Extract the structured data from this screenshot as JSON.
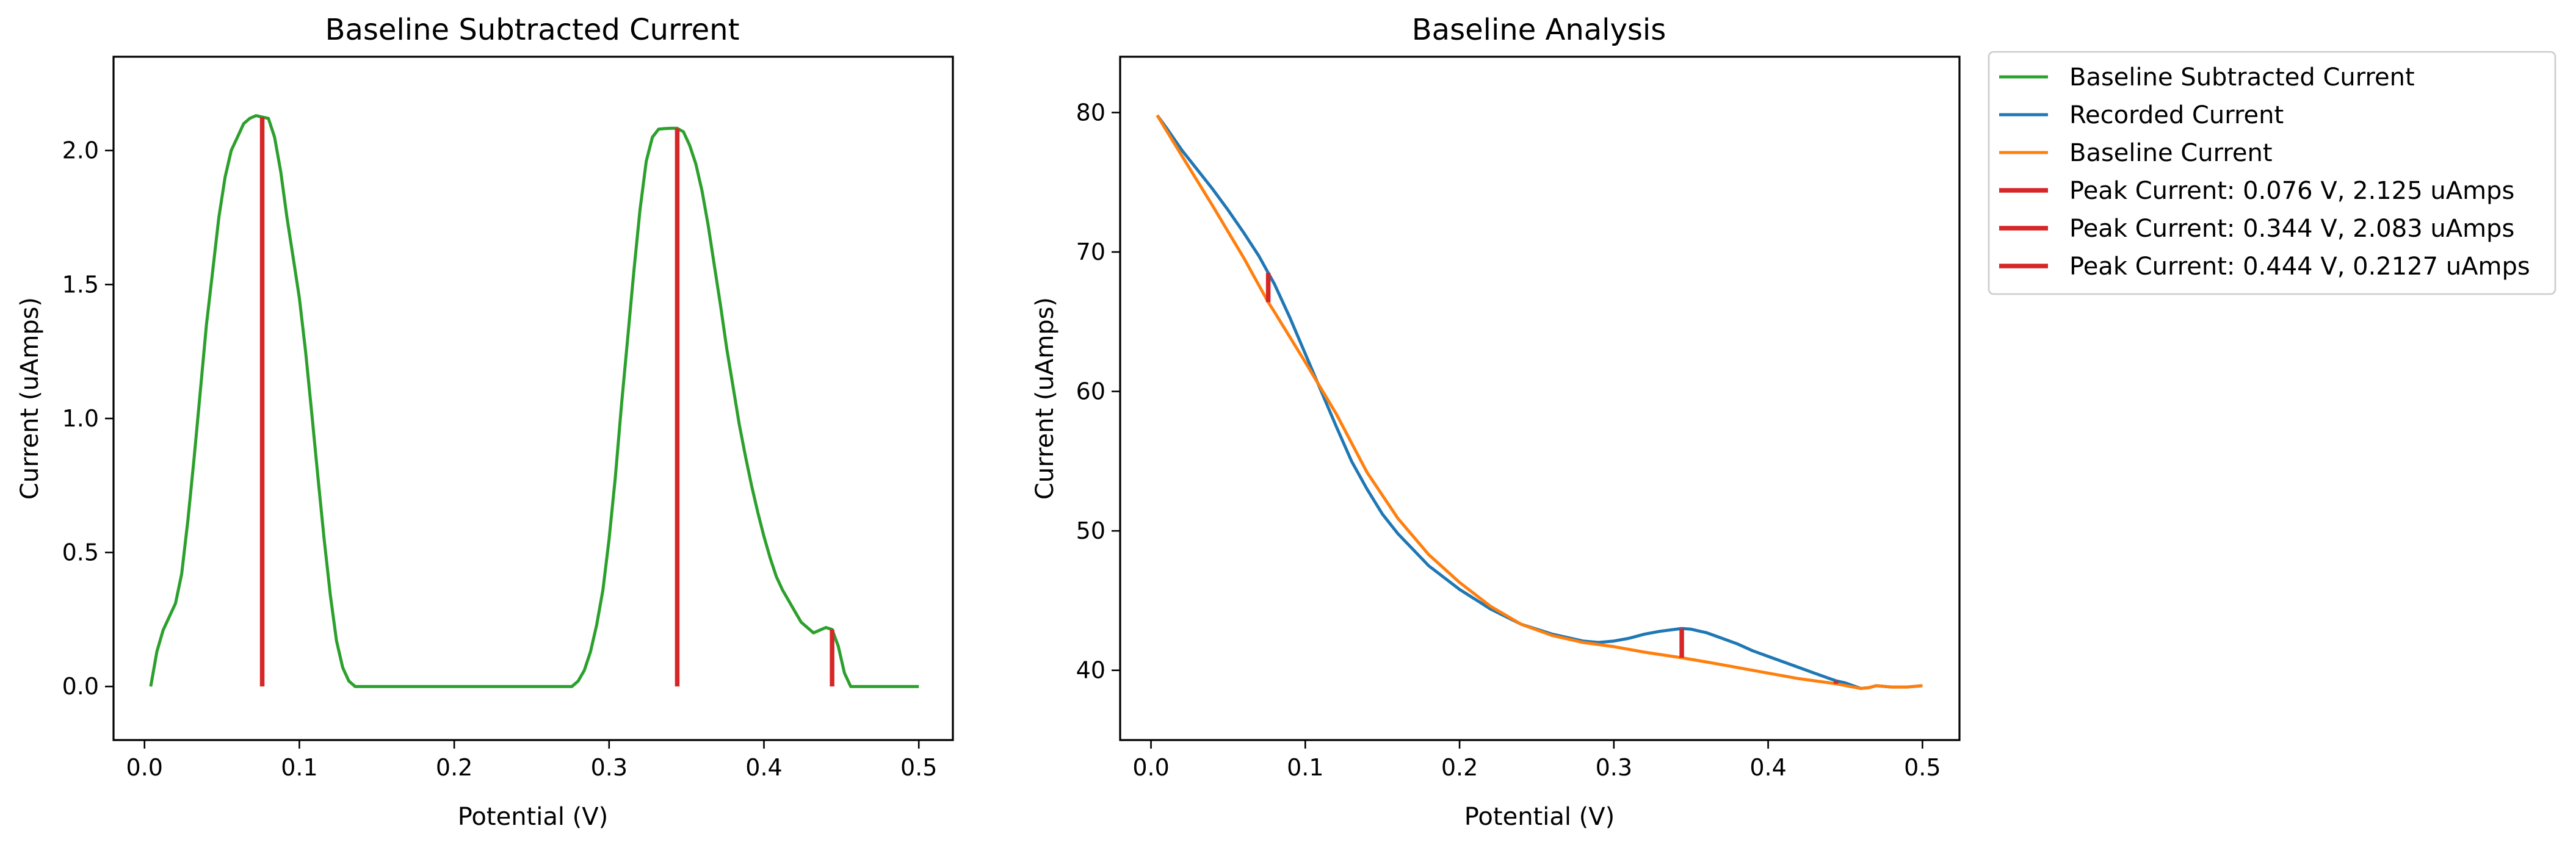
{
  "chart_data": [
    {
      "type": "line",
      "title": "Baseline Subtracted Current",
      "xlabel": "Potential (V)",
      "ylabel": "Current (uAmps)",
      "xlim": [
        -0.02,
        0.522
      ],
      "ylim": [
        -0.2,
        2.35
      ],
      "xticks": [
        0.0,
        0.1,
        0.2,
        0.3,
        0.4,
        0.5
      ],
      "yticks": [
        0.0,
        0.5,
        1.0,
        1.5,
        2.0
      ],
      "xtick_labels": [
        "0.0",
        "0.1",
        "0.2",
        "0.3",
        "0.4",
        "0.5"
      ],
      "ytick_labels": [
        "0.0",
        "0.5",
        "1.0",
        "1.5",
        "2.0"
      ],
      "series": [
        {
          "name": "Baseline Subtracted Current",
          "color": "#2ca02c",
          "x": [
            0.004,
            0.008,
            0.012,
            0.016,
            0.02,
            0.024,
            0.028,
            0.032,
            0.036,
            0.04,
            0.044,
            0.048,
            0.052,
            0.056,
            0.06,
            0.064,
            0.068,
            0.072,
            0.076,
            0.08,
            0.084,
            0.088,
            0.092,
            0.096,
            0.1,
            0.104,
            0.108,
            0.112,
            0.116,
            0.12,
            0.124,
            0.128,
            0.132,
            0.136,
            0.14,
            0.144,
            0.148,
            0.2,
            0.25,
            0.276,
            0.28,
            0.284,
            0.288,
            0.292,
            0.296,
            0.3,
            0.304,
            0.308,
            0.312,
            0.316,
            0.32,
            0.324,
            0.328,
            0.332,
            0.336,
            0.34,
            0.344,
            0.348,
            0.352,
            0.356,
            0.36,
            0.364,
            0.368,
            0.372,
            0.376,
            0.38,
            0.384,
            0.388,
            0.392,
            0.396,
            0.4,
            0.404,
            0.408,
            0.412,
            0.416,
            0.42,
            0.424,
            0.428,
            0.432,
            0.436,
            0.44,
            0.444,
            0.448,
            0.452,
            0.456,
            0.46,
            0.5
          ],
          "y": [
            0.0,
            0.13,
            0.21,
            0.26,
            0.31,
            0.42,
            0.62,
            0.85,
            1.1,
            1.35,
            1.55,
            1.75,
            1.9,
            2.0,
            2.05,
            2.1,
            2.12,
            2.13,
            2.125,
            2.12,
            2.05,
            1.92,
            1.75,
            1.6,
            1.45,
            1.25,
            1.02,
            0.78,
            0.55,
            0.34,
            0.17,
            0.07,
            0.02,
            0.0,
            0.0,
            0.0,
            0.0,
            0.0,
            0.0,
            0.0,
            0.02,
            0.06,
            0.13,
            0.23,
            0.36,
            0.55,
            0.78,
            1.05,
            1.3,
            1.55,
            1.78,
            1.96,
            2.05,
            2.08,
            2.082,
            2.083,
            2.083,
            2.07,
            2.02,
            1.95,
            1.85,
            1.72,
            1.57,
            1.42,
            1.26,
            1.12,
            0.98,
            0.86,
            0.75,
            0.65,
            0.56,
            0.48,
            0.41,
            0.36,
            0.32,
            0.28,
            0.24,
            0.22,
            0.2,
            0.21,
            0.22,
            0.2127,
            0.15,
            0.05,
            0.0,
            0.0,
            0.0
          ]
        }
      ],
      "peak_lines": [
        {
          "x": 0.076,
          "y0": 0.0,
          "y1": 2.125,
          "color": "#d62728"
        },
        {
          "x": 0.344,
          "y0": 0.0,
          "y1": 2.083,
          "color": "#d62728"
        },
        {
          "x": 0.444,
          "y0": 0.0,
          "y1": 0.2127,
          "color": "#d62728"
        }
      ]
    },
    {
      "type": "line",
      "title": "Baseline Analysis",
      "xlabel": "Potential (V)",
      "ylabel": "Current (uAmps)",
      "xlim": [
        -0.02,
        0.524
      ],
      "ylim": [
        35,
        84
      ],
      "xticks": [
        0.0,
        0.1,
        0.2,
        0.3,
        0.4,
        0.5
      ],
      "yticks": [
        40,
        50,
        60,
        70,
        80
      ],
      "xtick_labels": [
        "0.0",
        "0.1",
        "0.2",
        "0.3",
        "0.4",
        "0.5"
      ],
      "ytick_labels": [
        "40",
        "50",
        "60",
        "70",
        "80"
      ],
      "series": [
        {
          "name": "Recorded Current",
          "color": "#1f77b4",
          "x": [
            0.004,
            0.01,
            0.02,
            0.03,
            0.04,
            0.05,
            0.06,
            0.07,
            0.076,
            0.08,
            0.09,
            0.1,
            0.11,
            0.12,
            0.13,
            0.14,
            0.15,
            0.16,
            0.18,
            0.2,
            0.22,
            0.24,
            0.26,
            0.28,
            0.29,
            0.3,
            0.31,
            0.32,
            0.33,
            0.344,
            0.35,
            0.36,
            0.37,
            0.38,
            0.39,
            0.4,
            0.41,
            0.42,
            0.43,
            0.44,
            0.444,
            0.45,
            0.455,
            0.46,
            0.465,
            0.47,
            0.48,
            0.49,
            0.5
          ],
          "y": [
            79.8,
            78.9,
            77.3,
            75.9,
            74.5,
            73.0,
            71.4,
            69.7,
            68.5,
            67.7,
            65.3,
            62.7,
            60.1,
            57.5,
            55.0,
            53.0,
            51.2,
            49.8,
            47.5,
            45.8,
            44.4,
            43.3,
            42.6,
            42.1,
            42.0,
            42.1,
            42.3,
            42.6,
            42.8,
            43.0,
            42.95,
            42.7,
            42.3,
            41.9,
            41.4,
            41.0,
            40.6,
            40.2,
            39.8,
            39.4,
            39.25,
            39.1,
            38.9,
            38.7,
            38.75,
            38.9,
            38.8,
            38.8,
            38.9
          ]
        },
        {
          "name": "Baseline Current",
          "color": "#ff7f0e",
          "x": [
            0.004,
            0.02,
            0.04,
            0.06,
            0.076,
            0.08,
            0.1,
            0.12,
            0.14,
            0.16,
            0.18,
            0.2,
            0.22,
            0.24,
            0.26,
            0.28,
            0.29,
            0.3,
            0.32,
            0.344,
            0.36,
            0.38,
            0.4,
            0.42,
            0.444,
            0.455,
            0.46,
            0.465,
            0.47,
            0.48,
            0.49,
            0.5
          ],
          "y": [
            79.8,
            76.9,
            73.3,
            69.6,
            66.4,
            65.7,
            62.1,
            58.4,
            54.2,
            50.9,
            48.3,
            46.3,
            44.6,
            43.3,
            42.5,
            42.0,
            41.85,
            41.7,
            41.3,
            40.9,
            40.6,
            40.2,
            39.8,
            39.4,
            39.04,
            38.8,
            38.7,
            38.75,
            38.9,
            38.8,
            38.8,
            38.9
          ]
        }
      ],
      "peak_lines": [
        {
          "x": 0.076,
          "y0": 66.4,
          "y1": 68.5,
          "color": "#d62728"
        },
        {
          "x": 0.344,
          "y0": 40.9,
          "y1": 43.0,
          "color": "#d62728"
        },
        {
          "x": 0.444,
          "y0": 39.04,
          "y1": 39.25,
          "color": "#d62728"
        }
      ]
    }
  ],
  "legend": {
    "placement": "outside upper right",
    "entries": [
      {
        "label": "Baseline Subtracted Current",
        "color": "#2ca02c",
        "kind": "line"
      },
      {
        "label": "Recorded Current",
        "color": "#1f77b4",
        "kind": "line"
      },
      {
        "label": "Baseline Current",
        "color": "#ff7f0e",
        "kind": "line"
      },
      {
        "label": "Peak Current: 0.076 V, 2.125 uAmps",
        "color": "#d62728",
        "kind": "peak"
      },
      {
        "label": "Peak Current: 0.344 V, 2.083 uAmps",
        "color": "#d62728",
        "kind": "peak"
      },
      {
        "label": "Peak Current: 0.444 V, 0.2127 uAmps",
        "color": "#d62728",
        "kind": "peak"
      }
    ]
  }
}
